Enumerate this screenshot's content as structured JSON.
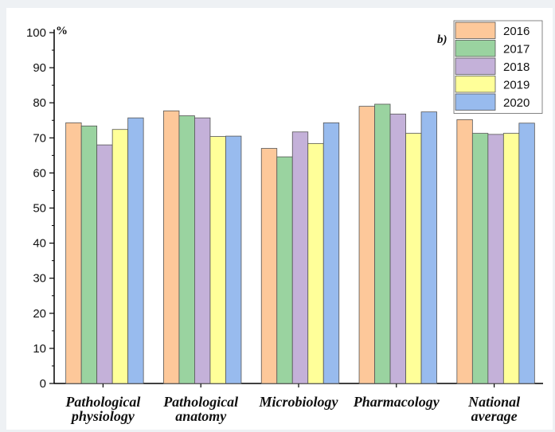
{
  "chart_data": {
    "type": "bar",
    "panel_label": "b)",
    "ylabel": "%",
    "ylim": [
      0,
      100
    ],
    "yticks": [
      0,
      10,
      20,
      30,
      40,
      50,
      60,
      70,
      80,
      90,
      100
    ],
    "grid": false,
    "legend_position": "top-right",
    "categories": [
      [
        "Pathological",
        "physiology"
      ],
      [
        "Pathological",
        "anatomy"
      ],
      [
        "Microbiology"
      ],
      [
        "Pharmacology"
      ],
      [
        "National",
        "average"
      ]
    ],
    "series": [
      {
        "name": "2016",
        "color": "#fdc89a",
        "values": [
          74.3,
          77.7,
          67.0,
          79.0,
          75.2
        ]
      },
      {
        "name": "2017",
        "color": "#9ad3a0",
        "values": [
          73.4,
          76.3,
          64.6,
          79.6,
          71.3
        ]
      },
      {
        "name": "2018",
        "color": "#c4b1d9",
        "values": [
          68.0,
          75.7,
          71.7,
          76.8,
          71.0
        ]
      },
      {
        "name": "2019",
        "color": "#ffff99",
        "values": [
          72.4,
          70.4,
          68.4,
          71.3,
          71.3
        ]
      },
      {
        "name": "2020",
        "color": "#98bbee",
        "values": [
          75.7,
          70.5,
          74.3,
          77.4,
          74.2
        ]
      }
    ]
  }
}
